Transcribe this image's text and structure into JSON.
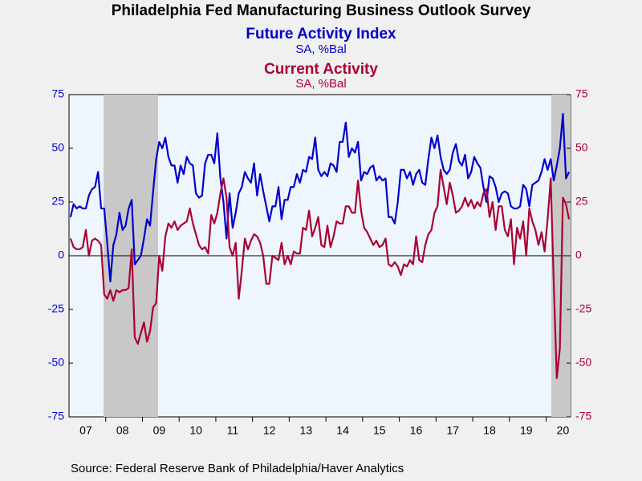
{
  "chart_data": {
    "type": "line",
    "title": "Philadelphia Fed Manufacturing Business Outlook Survey",
    "source": "Source:  Federal Reserve Bank of Philadelphia/Haver Analytics",
    "categories": [
      null,
      null,
      null,
      null,
      null,
      "07",
      null,
      null,
      null,
      null,
      null,
      null,
      null,
      null,
      null,
      null,
      null,
      "08",
      null,
      null,
      null,
      null,
      null,
      null,
      null,
      null,
      null,
      null,
      null,
      "09",
      null,
      null,
      null,
      null,
      null,
      null,
      null,
      null,
      null,
      null,
      null,
      "10",
      null,
      null,
      null,
      null,
      null,
      null,
      null,
      null,
      null,
      null,
      null,
      "11",
      null,
      null,
      null,
      null,
      null,
      null,
      null,
      null,
      null,
      null,
      null,
      "12",
      null,
      null,
      null,
      null,
      null,
      null,
      null,
      null,
      null,
      null,
      null,
      "13",
      null,
      null,
      null,
      null,
      null,
      null,
      null,
      null,
      null,
      null,
      null,
      "14",
      null,
      null,
      null,
      null,
      null,
      null,
      null,
      null,
      null,
      null,
      null,
      "15",
      null,
      null,
      null,
      null,
      null,
      null,
      null,
      null,
      null,
      null,
      null,
      "16",
      null,
      null,
      null,
      null,
      null,
      null,
      null,
      null,
      null,
      null,
      null,
      "17",
      null,
      null,
      null,
      null,
      null,
      null,
      null,
      null,
      null,
      null,
      null,
      "18",
      null,
      null,
      null,
      null,
      null,
      null,
      null,
      null,
      null,
      null,
      null,
      "19",
      null,
      null,
      null,
      null,
      null,
      null,
      null,
      null,
      null,
      null,
      null,
      "20",
      null,
      null
    ],
    "series": [
      {
        "name": "Future Activity Index",
        "units": "SA, %Bal",
        "color": "#0000cc",
        "axis": "y",
        "values": [
          18,
          24,
          22,
          23,
          22,
          22,
          28,
          31,
          32,
          39,
          22,
          22,
          6,
          -12,
          5,
          10,
          20,
          12,
          14,
          22,
          26,
          -4,
          -2,
          0,
          8,
          17,
          14,
          30,
          45,
          53,
          50,
          55,
          46,
          42,
          42,
          34,
          42,
          38,
          46,
          43,
          42,
          29,
          27,
          28,
          43,
          47,
          47,
          43,
          57,
          36,
          25,
          8,
          29,
          13,
          20,
          29,
          32,
          39,
          36,
          34,
          43,
          28,
          38,
          30,
          23,
          16,
          23,
          23,
          32,
          17,
          26,
          26,
          32,
          32,
          38,
          34,
          40,
          39,
          46,
          45,
          55,
          40,
          37,
          39,
          37,
          43,
          42,
          39,
          53,
          53,
          62,
          46,
          50,
          48,
          53,
          35,
          39,
          38,
          41,
          42,
          35,
          37,
          35,
          36,
          18,
          18,
          15,
          25,
          40,
          40,
          36,
          39,
          33,
          38,
          40,
          34,
          33,
          45,
          55,
          50,
          56,
          46,
          40,
          38,
          40,
          48,
          52,
          44,
          42,
          47,
          36,
          39,
          46,
          43,
          41,
          32,
          25,
          37,
          36,
          32,
          25,
          29,
          30,
          29,
          23,
          22,
          22,
          23,
          33,
          31,
          23,
          33,
          34,
          35,
          39,
          45,
          40,
          45,
          35,
          42,
          50,
          66,
          36,
          39
        ]
      },
      {
        "name": "Current Activity",
        "units": "SA, %Bal",
        "color": "#aa0033",
        "axis": "y2",
        "values": [
          8,
          4,
          3,
          3,
          4,
          12,
          0,
          7,
          8,
          7,
          5,
          -18,
          -20,
          -16,
          -21,
          -16,
          -17,
          -16,
          -16,
          -15,
          3,
          -38,
          -41,
          -36,
          -31,
          -40,
          -35,
          -24,
          -22,
          0,
          -7,
          9,
          15,
          13,
          16,
          12,
          14,
          15,
          16,
          22,
          15,
          10,
          5,
          3,
          4,
          1,
          19,
          15,
          20,
          29,
          36,
          27,
          4,
          0,
          6,
          -20,
          -7,
          8,
          3,
          7,
          10,
          9,
          6,
          0,
          -13,
          -13,
          0,
          -1,
          -2,
          6,
          -4,
          0,
          -4,
          2,
          1,
          1,
          13,
          12,
          21,
          9,
          13,
          18,
          5,
          4,
          14,
          4,
          9,
          16,
          15,
          15,
          23,
          23,
          20,
          20,
          35,
          21,
          13,
          11,
          8,
          5,
          7,
          4,
          5,
          8,
          -4,
          -5,
          -3,
          -5,
          -9,
          -4,
          -5,
          -2,
          -4,
          9,
          -2,
          -3,
          5,
          10,
          12,
          20,
          23,
          40,
          32,
          24,
          34,
          28,
          20,
          21,
          23,
          27,
          23,
          26,
          22,
          25,
          23,
          29,
          31,
          18,
          25,
          12,
          23,
          23,
          12,
          9,
          17,
          -4,
          13,
          8,
          16,
          0,
          22,
          16,
          12,
          5,
          11,
          2,
          17,
          36,
          -13,
          -57,
          -43,
          27,
          24,
          17
        ]
      }
    ],
    "ylim": [
      -75,
      75
    ],
    "yticks": [
      -75,
      -50,
      -25,
      0,
      25,
      50,
      75
    ],
    "y2lim": [
      -75,
      75
    ],
    "y2ticks": [
      -75,
      -50,
      -25,
      0,
      25,
      50,
      75
    ]
  }
}
